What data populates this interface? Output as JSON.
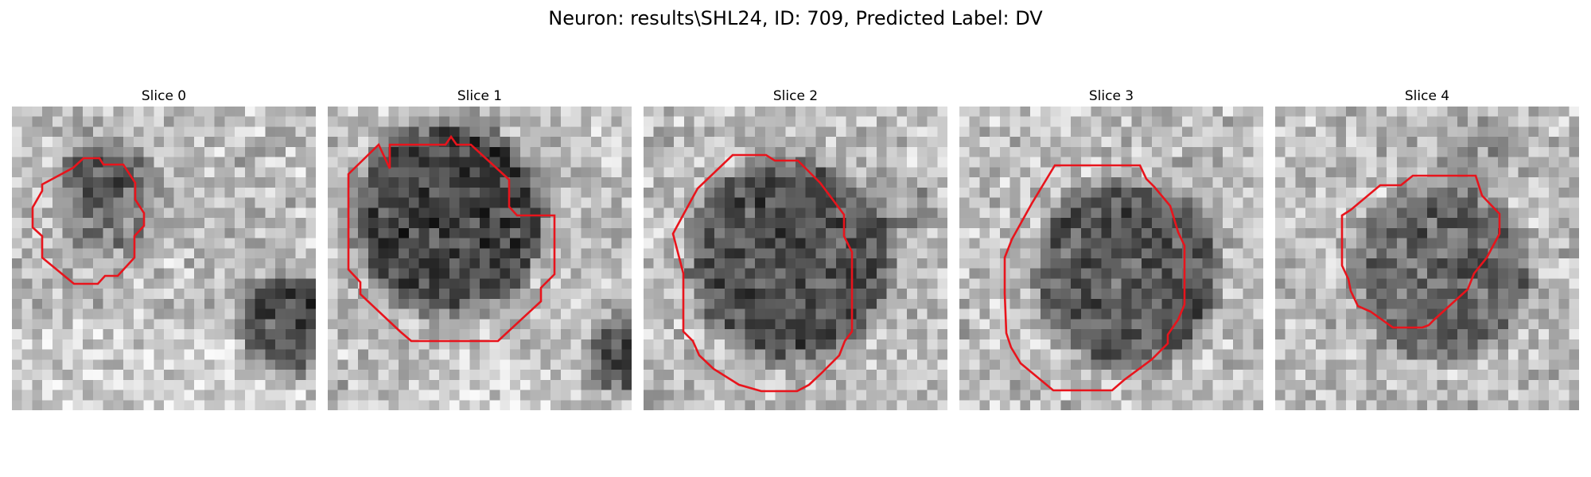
{
  "figure": {
    "title": "Neuron: results\\SHL24, ID: 709, Predicted Label: DV",
    "contour_color": "#e8141c"
  },
  "panels": [
    {
      "title": "Slice 0"
    },
    {
      "title": "Slice 1"
    },
    {
      "title": "Slice 2"
    },
    {
      "title": "Slice 3"
    },
    {
      "title": "Slice 4"
    }
  ]
}
